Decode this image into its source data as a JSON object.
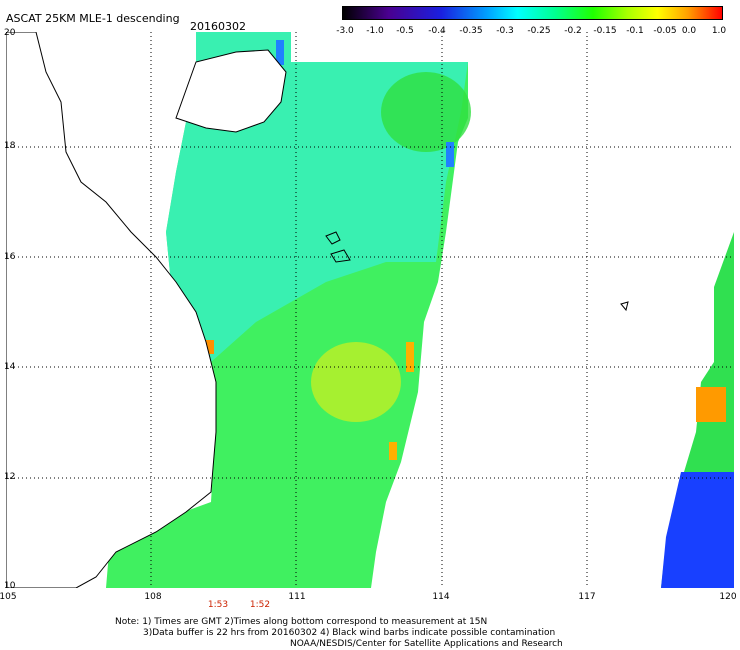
{
  "header": {
    "title": "ASCAT 25KM MLE-1 descending",
    "date": "20160302"
  },
  "colorbar": {
    "ticks": [
      "-3.0",
      "-1.0",
      "-0.5",
      "-0.4",
      "-0.35",
      "-0.3",
      "-0.25",
      "-0.2",
      "-0.15",
      "-0.1",
      "-0.05",
      "0.0",
      "1.0"
    ],
    "colors": [
      "#000000",
      "#4a0090",
      "#1a20e0",
      "#00a0ff",
      "#00ffff",
      "#00ff90",
      "#20ff00",
      "#a8ff00",
      "#ffff00",
      "#ffa000",
      "#ff0000"
    ]
  },
  "axes": {
    "x_labels": [
      "105",
      "108",
      "111",
      "114",
      "117",
      "120"
    ],
    "y_labels": [
      "20",
      "18",
      "16",
      "14",
      "12",
      "10"
    ],
    "grid": "dotted"
  },
  "time_labels": [
    "1:53",
    "1:52"
  ],
  "notes": [
    "Note: 1) Times are GMT 2)Times along bottom correspond to measurement at 15N",
    "3)Data buffer is 22 hrs from 20160302 4) Black wind barbs indicate possible contamination",
    "NOAA/NESDIS/Center for Satellite Applications and Research"
  ]
}
